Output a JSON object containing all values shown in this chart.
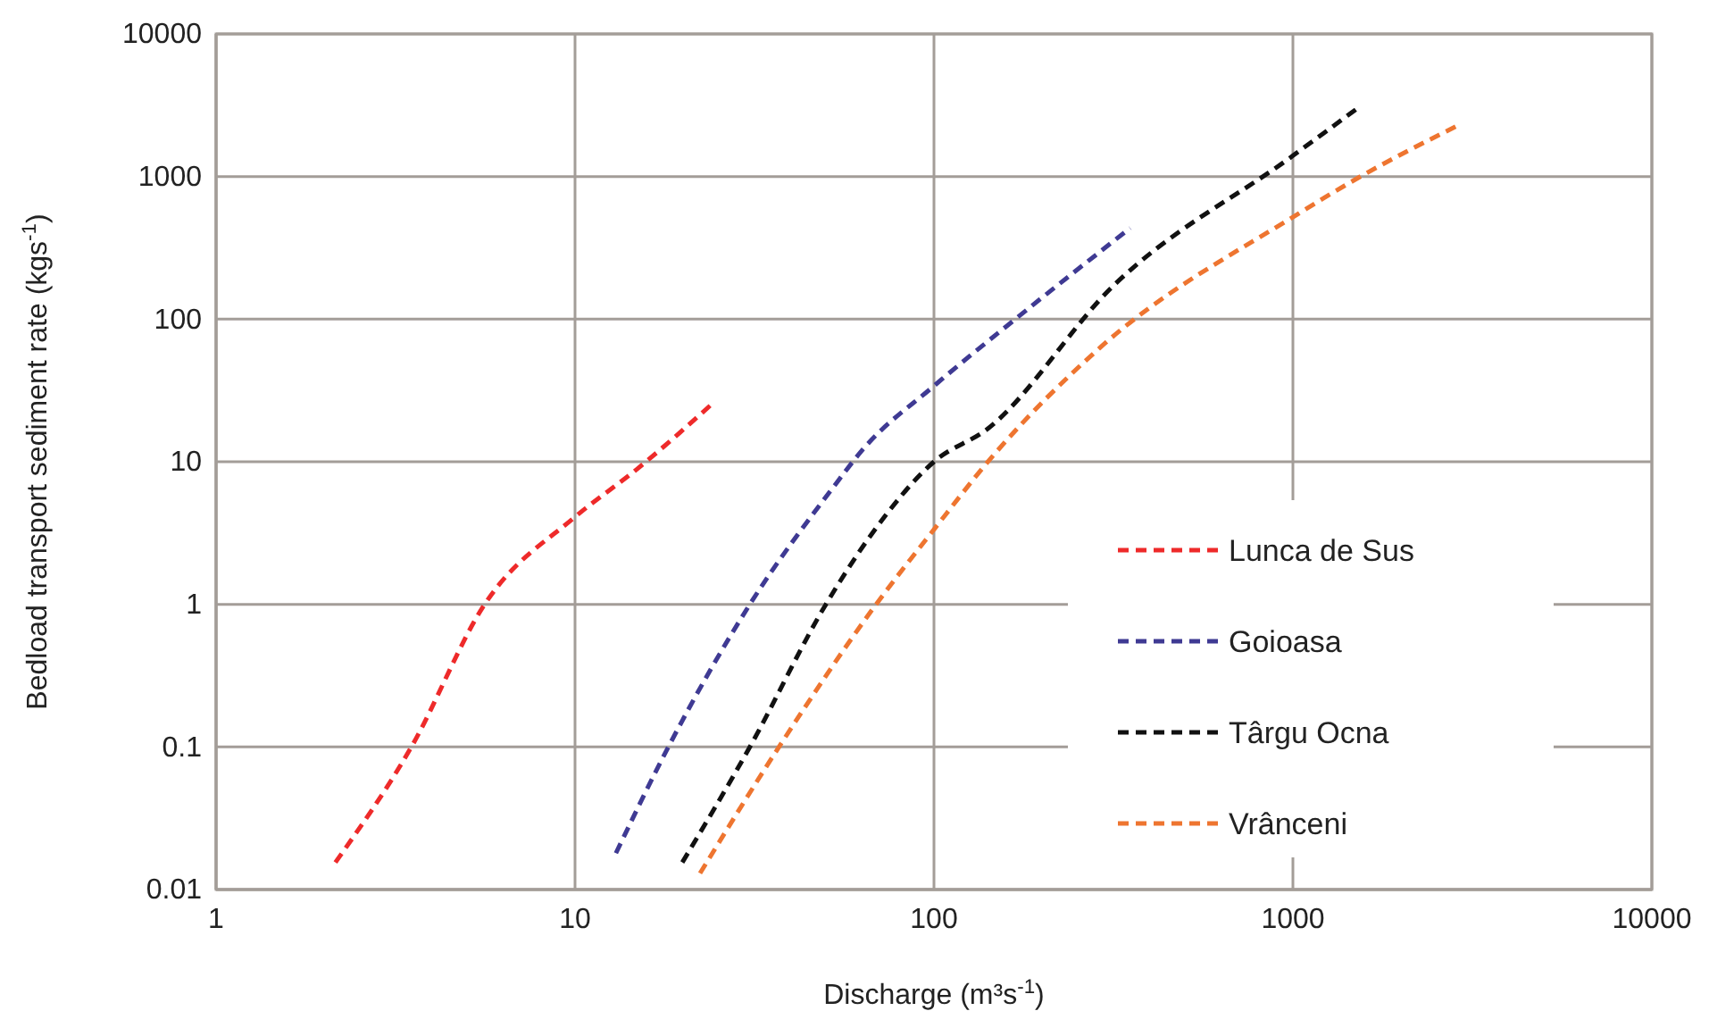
{
  "chart_data": {
    "type": "line",
    "xlabel": "Discharge (m³s$^{-1}$)",
    "ylabel": "Bedload transport sediment rate (kgs$^{-1}$)",
    "log": "xy",
    "xlim": [
      1,
      10000
    ],
    "xticks": [
      1,
      10,
      100,
      1000,
      10000
    ],
    "ylim": [
      0.01,
      10000
    ],
    "yticks": [
      0.01,
      0.1,
      1,
      10,
      100,
      1000,
      10000
    ],
    "grid": true,
    "legend": "right",
    "line_style": "dashed",
    "marker": "none",
    "series": [
      {
        "name": "Lunca de Sus",
        "color": "#ee2a2a",
        "x": [
          2.15,
          3.5,
          5.6,
          10,
          14.9,
          23.9
        ],
        "values": [
          0.0155,
          0.1,
          1,
          4.1,
          8.9,
          25
        ]
      },
      {
        "name": "Goioasa",
        "color": "#3f3a93",
        "x": [
          13,
          18.2,
          30.7,
          52.6,
          63,
          100,
          166,
          352
        ],
        "values": [
          0.018,
          0.1,
          1,
          6.7,
          12,
          34,
          97,
          435
        ]
      },
      {
        "name": "Târgu Ocna",
        "color": "#111111",
        "x": [
          19.9,
          30.7,
          50,
          67,
          100,
          141,
          315,
          1000,
          1510
        ],
        "values": [
          0.0155,
          0.1,
          1,
          3.1,
          10,
          17,
          170,
          1400,
          3000
        ]
      },
      {
        "name": "Vrânceni",
        "color": "#ee7530",
        "x": [
          22.3,
          37,
          69,
          100,
          146,
          290,
          1000,
          1510,
          2900
        ],
        "values": [
          0.013,
          0.1,
          1,
          3.35,
          11,
          63,
          520,
          970,
          2300
        ]
      }
    ]
  }
}
